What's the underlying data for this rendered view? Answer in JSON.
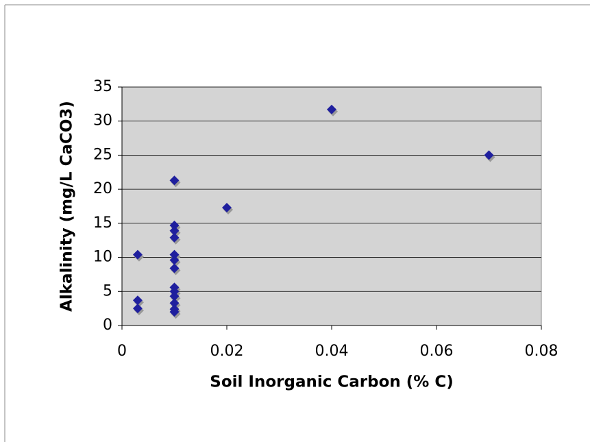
{
  "chart_data": {
    "type": "scatter",
    "x_label": "Soil Inorganic Carbon (% C)",
    "y_label": "Alkalinity (mg/L CaCO3)",
    "x": [
      0.003,
      0.003,
      0.003,
      0.01,
      0.01,
      0.01,
      0.01,
      0.01,
      0.01,
      0.01,
      0.01,
      0.01,
      0.01,
      0.01,
      0.01,
      0.01,
      0.02,
      0.04,
      0.07
    ],
    "values": [
      10.4,
      3.7,
      2.5,
      21.3,
      14.7,
      13.9,
      12.9,
      10.4,
      9.6,
      8.4,
      5.6,
      5.0,
      4.3,
      3.3,
      2.4,
      2.0,
      17.3,
      31.7,
      25.0
    ],
    "color": "#1f1f9e",
    "xlim": [
      0,
      0.08
    ],
    "xticks": [
      0,
      0.02,
      0.04,
      0.06,
      0.08
    ],
    "ylim": [
      0,
      35
    ],
    "yticks": [
      0,
      5,
      10,
      15,
      20,
      25,
      30,
      35
    ],
    "grid": true
  }
}
